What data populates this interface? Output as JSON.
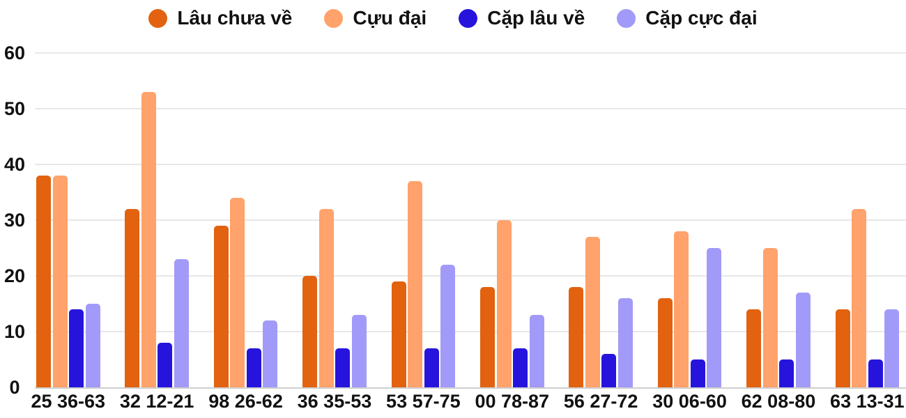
{
  "chart_data": {
    "type": "bar",
    "title": "",
    "categories": [
      "25 36-63",
      "32 12-21",
      "98 26-62",
      "36 35-53",
      "53 57-75",
      "00 78-87",
      "56 27-72",
      "30 06-60",
      "62 08-80",
      "63 13-31"
    ],
    "series": [
      {
        "name": "Lâu chưa về",
        "color": "#e2620f",
        "values": [
          38,
          32,
          29,
          20,
          19,
          18,
          18,
          16,
          14,
          14
        ]
      },
      {
        "name": "Cựu đại",
        "color": "#ffa26b",
        "values": [
          38,
          53,
          34,
          32,
          37,
          30,
          27,
          28,
          25,
          32
        ]
      },
      {
        "name": "Cặp lâu về",
        "color": "#2614dc",
        "values": [
          14,
          8,
          7,
          7,
          7,
          7,
          6,
          5,
          5,
          5
        ]
      },
      {
        "name": "Cặp cực đại",
        "color": "#a29af8",
        "values": [
          15,
          23,
          12,
          13,
          22,
          13,
          16,
          25,
          17,
          14
        ]
      }
    ],
    "ylim": [
      0,
      60
    ],
    "yticks": [
      0,
      10,
      20,
      30,
      40,
      50,
      60
    ],
    "grid": true,
    "legend_position": "top",
    "background_color": "#ffffff",
    "gridline_color": "#e7e7e7",
    "axis_text_color": "#111111"
  }
}
